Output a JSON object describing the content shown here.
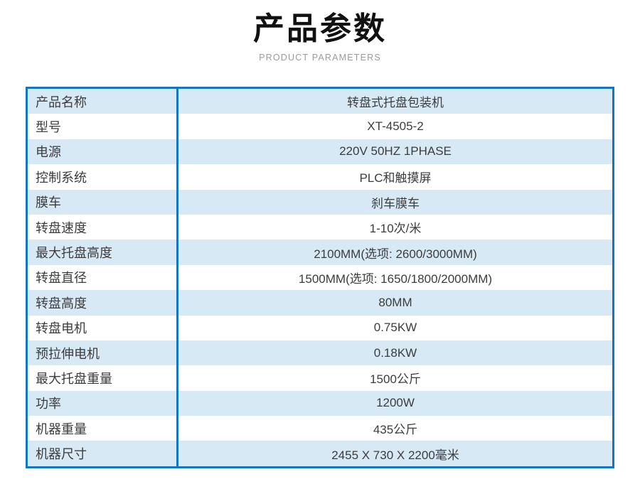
{
  "header": {
    "title": "产品参数",
    "subtitle": "PRODUCT PARAMETERS"
  },
  "colors": {
    "table_border": "#1377bd",
    "row_alt_blue": "#d8e9f6",
    "row_white": "#ffffff",
    "text": "#3c3c3c",
    "title_text": "#111111",
    "subtitle_text": "#9b9b9b"
  },
  "table": {
    "rows": [
      {
        "label": "产品名称",
        "value": "转盘式托盘包装机"
      },
      {
        "label": "型号",
        "value": "XT-4505-2"
      },
      {
        "label": "电源",
        "value": "220V 50HZ 1PHASE"
      },
      {
        "label": "控制系统",
        "value": "PLC和触摸屏"
      },
      {
        "label": "膜车",
        "value": "刹车膜车"
      },
      {
        "label": "转盘速度",
        "value": "1-10次/米"
      },
      {
        "label": "最大托盘高度",
        "value": "2100MM(选项: 2600/3000MM)"
      },
      {
        "label": "转盘直径",
        "value": "1500MM(选项: 1650/1800/2000MM)"
      },
      {
        "label": "转盘高度",
        "value": "80MM"
      },
      {
        "label": "转盘电机",
        "value": "0.75KW"
      },
      {
        "label": "预拉伸电机",
        "value": "0.18KW"
      },
      {
        "label": "最大托盘重量",
        "value": "1500公斤"
      },
      {
        "label": "功率",
        "value": "1200W"
      },
      {
        "label": "机器重量",
        "value": "435公斤"
      },
      {
        "label": "机器尺寸",
        "value": "2455 X 730 X 2200毫米"
      }
    ]
  }
}
